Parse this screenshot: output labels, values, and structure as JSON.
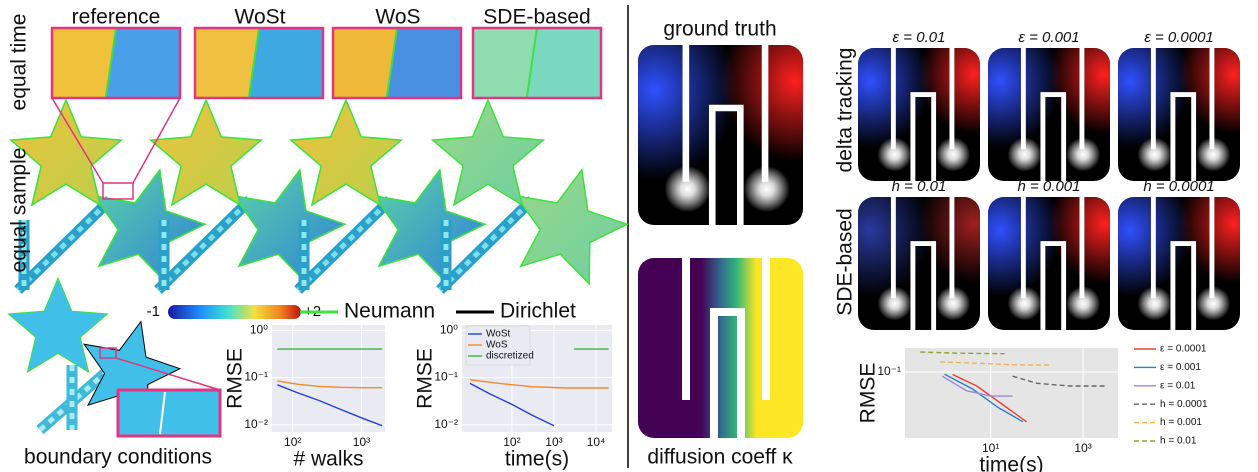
{
  "left": {
    "column_labels": [
      "reference",
      "WoSt",
      "WoS",
      "SDE-based"
    ],
    "row_labels": [
      "equal time",
      "equal sample"
    ],
    "colorbar": {
      "min_label": "-1",
      "max_label": "+2"
    },
    "boundary_legend": [
      "Neumann",
      "Dirichlet"
    ],
    "caption": "boundary conditions"
  },
  "right": {
    "ground_truth_label": "ground truth",
    "coefficient_label": "diffusion coeff κ",
    "row_labels": [
      "delta tracking",
      "SDE-based"
    ],
    "column_labels": [
      [
        "ε = 0.01",
        "ε = 0.001",
        "ε = 0.0001"
      ],
      [
        "h = 0.01",
        "h = 0.001",
        "h = 0.0001"
      ]
    ]
  },
  "chart_data": [
    {
      "type": "line",
      "xlabel": "# walks",
      "ylabel": "RMSE",
      "xscale": "log",
      "yscale": "log",
      "grid": true,
      "background": "#eaeaf2",
      "xlim": [
        50,
        2200
      ],
      "ylim": [
        0.007,
        1.3
      ],
      "xticks": [
        {
          "value": 100,
          "label": "10²"
        },
        {
          "value": 1000,
          "label": "10³"
        }
      ],
      "yticks": [
        {
          "value": 0.01,
          "label": "10⁻²"
        },
        {
          "value": 0.1,
          "label": "10⁻¹"
        },
        {
          "value": 1,
          "label": "10⁰"
        }
      ],
      "series": [
        {
          "color": "#1f3fe0",
          "x": [
            60,
            120,
            250,
            500,
            1000,
            2000
          ],
          "values": [
            0.07,
            0.047,
            0.032,
            0.021,
            0.014,
            0.0095
          ]
        },
        {
          "color": "#f28a2e",
          "x": [
            60,
            120,
            250,
            500,
            1000,
            2000
          ],
          "values": [
            0.085,
            0.072,
            0.065,
            0.062,
            0.061,
            0.061
          ]
        },
        {
          "color": "#3cb43c",
          "x": [
            60,
            120,
            250,
            500,
            1000,
            2000
          ],
          "values": [
            0.4,
            0.4,
            0.4,
            0.4,
            0.4,
            0.4
          ]
        }
      ]
    },
    {
      "type": "line",
      "xlabel": "time(s)",
      "ylabel": "RMSE",
      "xscale": "log",
      "yscale": "log",
      "grid": true,
      "background": "#eaeaf2",
      "legend": "upper left",
      "xlim": [
        6.5,
        24000
      ],
      "ylim": [
        0.007,
        1.3
      ],
      "xticks": [
        {
          "value": 100,
          "label": "10²"
        },
        {
          "value": 1000,
          "label": "10³"
        },
        {
          "value": 10000,
          "label": "10⁴"
        }
      ],
      "yticks": [
        {
          "value": 0.01,
          "label": "10⁻²"
        },
        {
          "value": 0.1,
          "label": "10⁻¹"
        },
        {
          "value": 1,
          "label": "10⁰"
        }
      ],
      "series": [
        {
          "name": "WoSt",
          "color": "#1f3fe0",
          "x": [
            10,
            30,
            100,
            300,
            1000
          ],
          "values": [
            0.075,
            0.045,
            0.027,
            0.016,
            0.0095
          ]
        },
        {
          "name": "WoS",
          "color": "#f28a2e",
          "x": [
            10,
            50,
            300,
            2000,
            20000
          ],
          "values": [
            0.09,
            0.075,
            0.064,
            0.06,
            0.06
          ]
        },
        {
          "name": "discretized",
          "color": "#3cb43c",
          "x": [
            3000,
            20000
          ],
          "values": [
            0.4,
            0.4
          ]
        }
      ]
    },
    {
      "type": "line",
      "xlabel": "time(s)",
      "ylabel": "RMSE",
      "xscale": "log",
      "yscale": "log",
      "grid": true,
      "background": "#e5e5e5",
      "legend": "outside right",
      "xlim": [
        0.14,
        5700
      ],
      "ylim": [
        0.0185,
        0.185
      ],
      "xticks": [
        {
          "value": 10,
          "label": "10¹"
        },
        {
          "value": 1000,
          "label": "10³"
        }
      ],
      "yticks": [
        {
          "value": 0.1,
          "label": "10⁻¹"
        }
      ],
      "series": [
        {
          "name": "ε = 0.0001",
          "color": "#e8403a",
          "linestyle": "solid",
          "x": [
            1.5,
            5,
            20,
            60
          ],
          "values": [
            0.094,
            0.07,
            0.042,
            0.028
          ]
        },
        {
          "name": "ε = 0.001",
          "color": "#2f7fc0",
          "linestyle": "solid",
          "x": [
            1,
            4,
            15,
            50
          ],
          "values": [
            0.095,
            0.065,
            0.04,
            0.028
          ]
        },
        {
          "name": "ε = 0.01",
          "color": "#9c8ad6",
          "linestyle": "solid",
          "x": [
            0.9,
            3,
            10,
            30
          ],
          "values": [
            0.09,
            0.062,
            0.054,
            0.054
          ]
        },
        {
          "name": "h = 0.0001",
          "color": "#666666",
          "linestyle": "dashed",
          "x": [
            30,
            100,
            500,
            3000
          ],
          "values": [
            0.09,
            0.075,
            0.07,
            0.07
          ]
        },
        {
          "name": "h = 0.001",
          "color": "#f5b04a",
          "linestyle": "dashed",
          "x": [
            0.8,
            5,
            40,
            200
          ],
          "values": [
            0.13,
            0.125,
            0.12,
            0.12
          ]
        },
        {
          "name": "h = 0.01",
          "color": "#8ea43a",
          "linestyle": "dashed",
          "x": [
            0.3,
            2,
            20
          ],
          "values": [
            0.167,
            0.162,
            0.16
          ]
        }
      ]
    }
  ]
}
